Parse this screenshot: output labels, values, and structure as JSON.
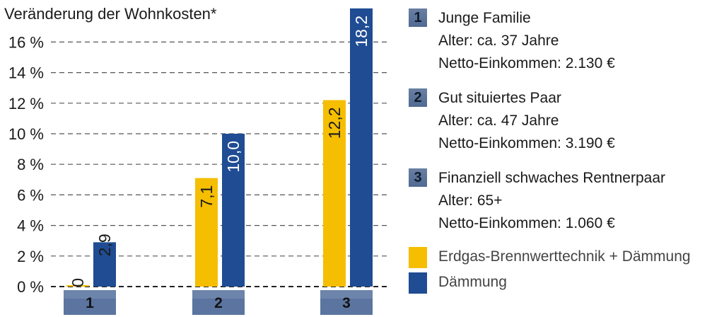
{
  "colors": {
    "gas": "#f6be00",
    "daemmung": "#1f4c93",
    "category_box": "#5b75a0"
  },
  "chart_data": {
    "type": "bar",
    "title": "Veränderung der Wohnkosten*",
    "categories": [
      "1",
      "2",
      "3"
    ],
    "series": [
      {
        "name": "Erdgas-Brennwerttechnik + Dämmung",
        "values": [
          0,
          7.1,
          12.2
        ],
        "labels": [
          "0",
          "7,1",
          "12,2"
        ],
        "color": "#f6be00"
      },
      {
        "name": "Dämmung",
        "values": [
          2.9,
          10.0,
          18.2
        ],
        "labels": [
          "2,9",
          "10,0",
          "18,2"
        ],
        "color": "#1f4c93"
      }
    ],
    "ylim": [
      0,
      18.2
    ],
    "yticks": [
      {
        "value": 0,
        "label": "0 %"
      },
      {
        "value": 2,
        "label": "2 %"
      },
      {
        "value": 4,
        "label": "4 %"
      },
      {
        "value": 6,
        "label": "6 %"
      },
      {
        "value": 8,
        "label": "8 %"
      },
      {
        "value": 10,
        "label": "10 %"
      },
      {
        "value": 12,
        "label": "12 %"
      },
      {
        "value": 14,
        "label": "14 %"
      },
      {
        "value": 16,
        "label": "16 %"
      }
    ],
    "grid": "dashed horizontal",
    "legend": "right"
  },
  "groups": [
    {
      "number": "1",
      "title": "Junge Familie",
      "age": "Alter: ca. 37 Jahre",
      "income": "Netto-Einkommen: 2.130 €"
    },
    {
      "number": "2",
      "title": "Gut situiertes Paar",
      "age": "Alter: ca. 47 Jahre",
      "income": "Netto-Einkommen: 3.190 €"
    },
    {
      "number": "3",
      "title": "Finanziell schwaches Rentnerpaar",
      "age": "Alter: 65+",
      "income": "Netto-Einkommen: 1.060 €"
    }
  ],
  "legend": {
    "gas_label": "Erdgas-Brennwerttechnik + Dämmung",
    "daemmung_label": "Dämmung"
  }
}
